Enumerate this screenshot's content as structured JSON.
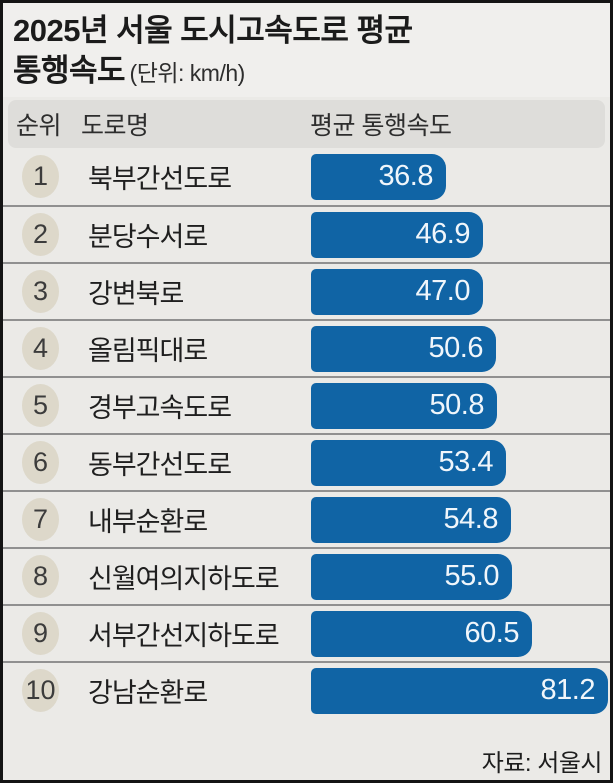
{
  "title": {
    "line1": "2025년 서울 도시고속도로 평균",
    "line2": "통행속도",
    "unit": "(단위: km/h)"
  },
  "header": {
    "rank": "순위",
    "road": "도로명",
    "speed": "평균 통행속도"
  },
  "chart_data": {
    "type": "bar",
    "orientation": "horizontal",
    "title": "2025년 서울 도시고속도로 평균 통행속도",
    "unit": "km/h",
    "xlim": [
      0,
      81.2
    ],
    "categories": [
      "북부간선도로",
      "분당수서로",
      "강변북로",
      "올림픽대로",
      "경부고속도로",
      "동부간선도로",
      "내부순환로",
      "신월여의지하도로",
      "서부간선지하도로",
      "강남순환로"
    ],
    "values": [
      36.8,
      46.9,
      47.0,
      50.6,
      50.8,
      53.4,
      54.8,
      55.0,
      60.5,
      81.2
    ],
    "rows": [
      {
        "rank": "1",
        "name": "북부간선도로",
        "value": 36.8,
        "display": "36.8"
      },
      {
        "rank": "2",
        "name": "분당수서로",
        "value": 46.9,
        "display": "46.9"
      },
      {
        "rank": "3",
        "name": "강변북로",
        "value": 47.0,
        "display": "47.0"
      },
      {
        "rank": "4",
        "name": "올림픽대로",
        "value": 50.6,
        "display": "50.6"
      },
      {
        "rank": "5",
        "name": "경부고속도로",
        "value": 50.8,
        "display": "50.8"
      },
      {
        "rank": "6",
        "name": "동부간선도로",
        "value": 53.4,
        "display": "53.4"
      },
      {
        "rank": "7",
        "name": "내부순환로",
        "value": 54.8,
        "display": "54.8"
      },
      {
        "rank": "8",
        "name": "신월여의지하도로",
        "value": 55.0,
        "display": "55.0"
      },
      {
        "rank": "9",
        "name": "서부간선지하도로",
        "value": 60.5,
        "display": "60.5"
      },
      {
        "rank": "10",
        "name": "강남순환로",
        "value": 81.2,
        "display": "81.2"
      }
    ],
    "legend": null,
    "grid": false,
    "bar_color": "#1064a5",
    "value_label_color": "#f0f6fb",
    "source": "자료: 서울시"
  },
  "footer": {
    "source": "자료: 서울시"
  },
  "colors": {
    "bar": "#1064a5",
    "rank_badge": "#ddd8ca",
    "background": "#ebeae7",
    "title_background": "#f0efed",
    "header_band": "#deddda",
    "separator": "#909090",
    "border": "#141414"
  }
}
